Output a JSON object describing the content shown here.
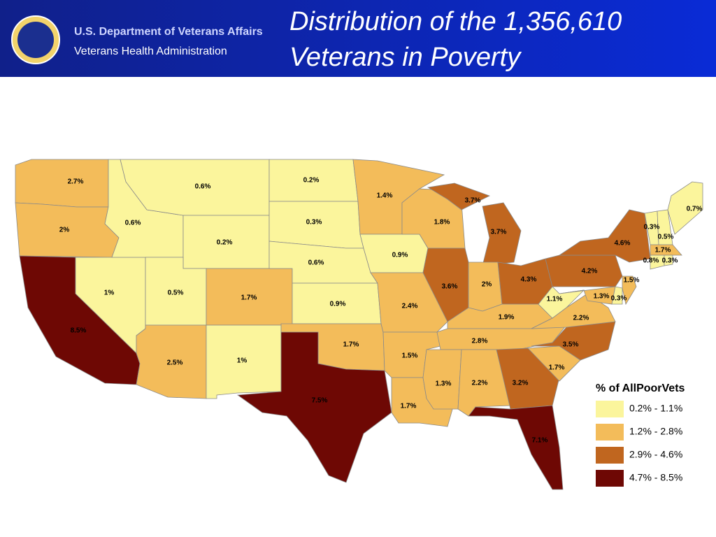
{
  "header": {
    "org": "U.S. Department of Veterans Affairs",
    "suborg": "Veterans Health Administration",
    "title": [
      "Distribution of the 1,356,610",
      "Veterans in Poverty"
    ]
  },
  "map": {
    "regions": [
      {
        "label": "2.7%",
        "color": "#f3bc5a"
      },
      {
        "label": "2%",
        "color": "#f3bc5a"
      },
      {
        "label": "8.5%",
        "color": "#6e0804"
      },
      {
        "label": "1%",
        "color": "#fbf59c"
      },
      {
        "label": "0.6%",
        "color": "#fbf59c"
      },
      {
        "label": "0.6%",
        "color": "#fbf59c"
      },
      {
        "label": "0.2%",
        "color": "#fbf59c"
      },
      {
        "label": "0.5%",
        "color": "#fbf59c"
      },
      {
        "label": "1.7%",
        "color": "#f3bc5a"
      },
      {
        "label": "2.5%",
        "color": "#f3bc5a"
      },
      {
        "label": "1%",
        "color": "#fbf59c"
      },
      {
        "label": "0.2%",
        "color": "#fbf59c"
      },
      {
        "label": "0.3%",
        "color": "#fbf59c"
      },
      {
        "label": "0.6%",
        "color": "#fbf59c"
      },
      {
        "label": "0.9%",
        "color": "#fbf59c"
      },
      {
        "label": "1.7%",
        "color": "#f3bc5a"
      },
      {
        "label": "7.5%",
        "color": "#6e0804"
      },
      {
        "label": "1.4%",
        "color": "#f3bc5a"
      },
      {
        "label": "0.9%",
        "color": "#fbf59c"
      },
      {
        "label": "2.4%",
        "color": "#f3bc5a"
      },
      {
        "label": "1.5%",
        "color": "#f3bc5a"
      },
      {
        "label": "1.7%",
        "color": "#f3bc5a"
      },
      {
        "label": "1.8%",
        "color": "#f3bc5a"
      },
      {
        "label": "3.7%",
        "color": "#c0661f"
      },
      {
        "label": "3.7%",
        "color": "#c0661f"
      },
      {
        "label": "3.6%",
        "color": "#c0661f"
      },
      {
        "label": "2%",
        "color": "#f3bc5a"
      },
      {
        "label": "4.3%",
        "color": "#c0661f"
      },
      {
        "label": "1.9%",
        "color": "#f3bc5a"
      },
      {
        "label": "2.8%",
        "color": "#f3bc5a"
      },
      {
        "label": "1.3%",
        "color": "#f3bc5a"
      },
      {
        "label": "2.2%",
        "color": "#f3bc5a"
      },
      {
        "label": "3.2%",
        "color": "#c0661f"
      },
      {
        "label": "7.1%",
        "color": "#6e0804"
      },
      {
        "label": "1.7%",
        "color": "#f3bc5a"
      },
      {
        "label": "3.5%",
        "color": "#c0661f"
      },
      {
        "label": "2.2%",
        "color": "#f3bc5a"
      },
      {
        "label": "1.1%",
        "color": "#fbf59c"
      },
      {
        "label": "4.2%",
        "color": "#c0661f"
      },
      {
        "label": "4.6%",
        "color": "#c0661f"
      },
      {
        "label": "1.3%",
        "color": "#f3bc5a"
      },
      {
        "label": "0.3%",
        "color": "#fbf59c"
      },
      {
        "label": "1.5%",
        "color": "#f3bc5a"
      },
      {
        "label": "0.3%",
        "color": "#fbf59c"
      },
      {
        "label": "0.5%",
        "color": "#fbf59c"
      },
      {
        "label": "0.7%",
        "color": "#fbf59c"
      },
      {
        "label": "1.7%",
        "color": "#f3bc5a"
      },
      {
        "label": "0.8%",
        "color": "#fbf59c"
      },
      {
        "label": "0.3%",
        "color": "#fbf59c"
      }
    ],
    "legend": {
      "title": "% of AllPoorVets",
      "items": [
        {
          "label": "0.2% - 1.1%",
          "color": "#fbf59c"
        },
        {
          "label": "1.2% - 2.8%",
          "color": "#f3bc5a"
        },
        {
          "label": "2.9% - 4.6%",
          "color": "#c0661f"
        },
        {
          "label": "4.7% - 8.5%",
          "color": "#6e0804"
        }
      ]
    }
  }
}
